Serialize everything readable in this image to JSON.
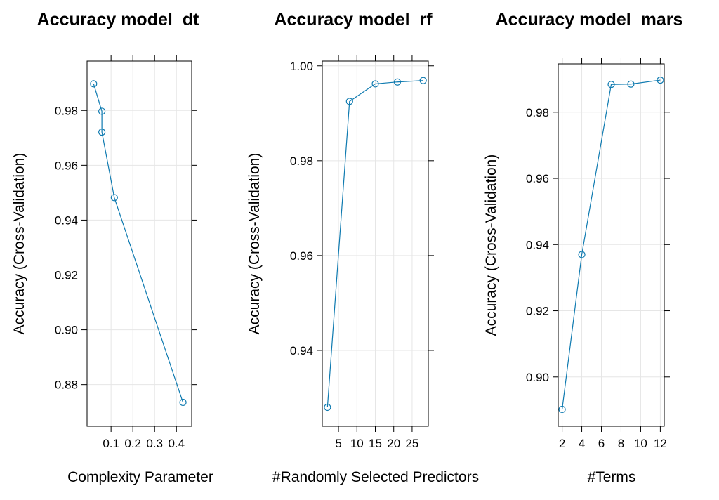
{
  "chart_data": [
    {
      "type": "line",
      "title": "Accuracy model_dt",
      "xlabel": "Complexity Parameter",
      "ylabel": "Accuracy (Cross-Validation)",
      "x": [
        0.02,
        0.058,
        0.058,
        0.115,
        0.43
      ],
      "y": [
        0.9897,
        0.9797,
        0.9721,
        0.9482,
        0.8735
      ],
      "xlim": [
        -0.01,
        0.47
      ],
      "ylim": [
        0.8648,
        0.998
      ],
      "xticks": [
        0.1,
        0.2,
        0.3,
        0.4
      ],
      "xtick_labels": [
        "0.1",
        "0.2",
        "0.3",
        "0.4"
      ],
      "yticks": [
        0.88,
        0.9,
        0.92,
        0.94,
        0.96,
        0.98
      ],
      "ytick_labels": [
        "0.88",
        "0.90",
        "0.92",
        "0.94",
        "0.96",
        "0.98"
      ],
      "grid": true,
      "color": "#0e7ab0"
    },
    {
      "type": "line",
      "title": "Accuracy model_rf",
      "xlabel": "#Randomly Selected Predictors",
      "ylabel": "Accuracy (Cross-Validation)",
      "x": [
        2,
        8,
        15,
        21,
        28
      ],
      "y": [
        0.928,
        0.9925,
        0.9962,
        0.9966,
        0.9969
      ],
      "xlim": [
        0.6,
        29.4
      ],
      "ylim": [
        0.924,
        1.001
      ],
      "xticks": [
        5,
        10,
        15,
        20,
        25
      ],
      "xtick_labels": [
        "5",
        "10",
        "15",
        "20",
        "25"
      ],
      "yticks": [
        0.94,
        0.96,
        0.98,
        1.0
      ],
      "ytick_labels": [
        "0.94",
        "0.96",
        "0.98",
        "1.00"
      ],
      "grid": true,
      "color": "#0e7ab0"
    },
    {
      "type": "line",
      "title": "Accuracy model_mars",
      "xlabel": "#Terms",
      "ylabel": "Accuracy (Cross-Validation)",
      "x": [
        2,
        4,
        7,
        9,
        12
      ],
      "y": [
        0.8902,
        0.937,
        0.9884,
        0.9885,
        0.9897
      ],
      "xlim": [
        1.6,
        12.4
      ],
      "ylim": [
        0.8851,
        0.9946
      ],
      "xticks": [
        2,
        4,
        6,
        8,
        10,
        12
      ],
      "xtick_labels": [
        "2",
        "4",
        "6",
        "8",
        "10",
        "12"
      ],
      "yticks": [
        0.9,
        0.92,
        0.94,
        0.96,
        0.98
      ],
      "ytick_labels": [
        "0.90",
        "0.92",
        "0.94",
        "0.96",
        "0.98"
      ],
      "grid": true,
      "color": "#0e7ab0"
    }
  ]
}
